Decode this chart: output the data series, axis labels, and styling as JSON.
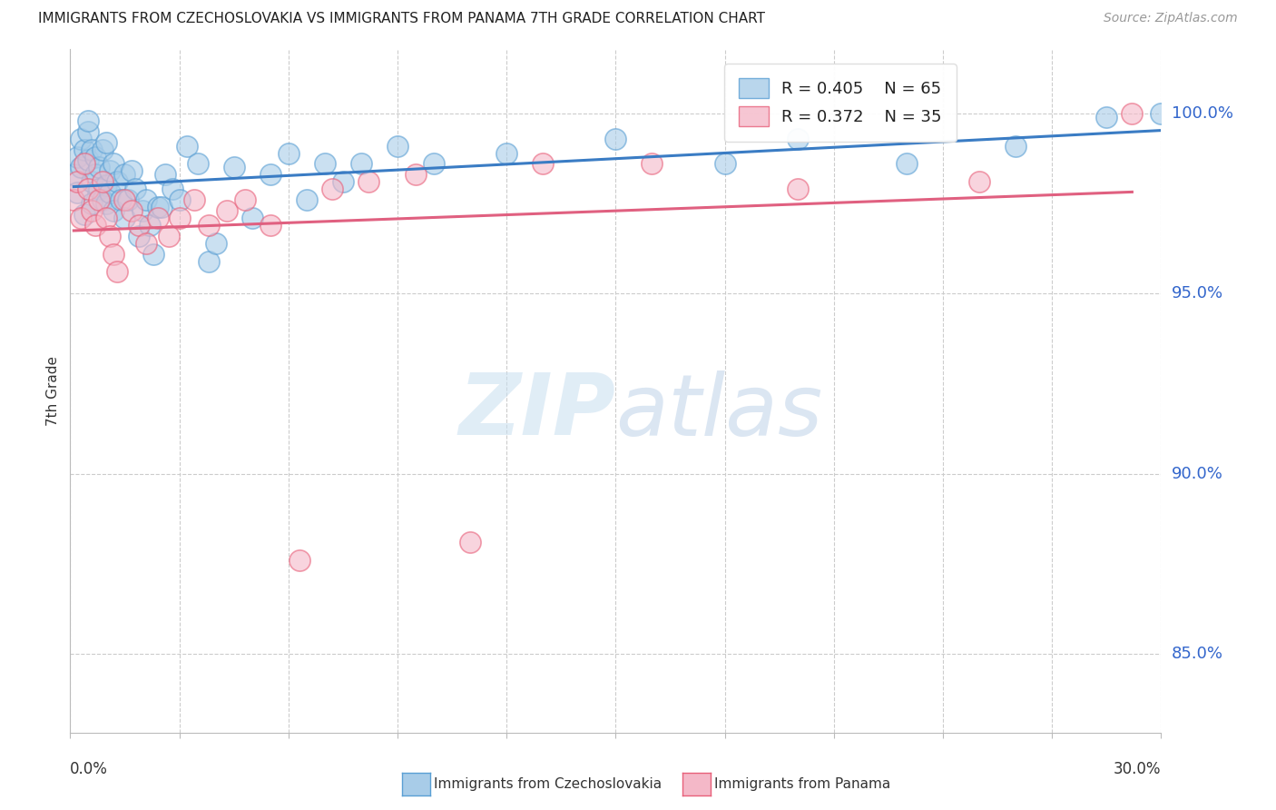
{
  "title": "IMMIGRANTS FROM CZECHOSLOVAKIA VS IMMIGRANTS FROM PANAMA 7TH GRADE CORRELATION CHART",
  "source": "Source: ZipAtlas.com",
  "ylabel": "7th Grade",
  "yaxis_labels": [
    "100.0%",
    "95.0%",
    "90.0%",
    "85.0%"
  ],
  "yaxis_values": [
    1.0,
    0.95,
    0.9,
    0.85
  ],
  "xmin": 0.0,
  "xmax": 0.3,
  "ymin": 0.828,
  "ymax": 1.018,
  "legend_r1": "R = 0.405",
  "legend_n1": "N = 65",
  "legend_r2": "R = 0.372",
  "legend_n2": "N = 35",
  "color_blue": "#a8cce8",
  "color_pink": "#f4b8c8",
  "edge_blue": "#5a9fd4",
  "edge_pink": "#e8607a",
  "line_blue": "#3a7cc4",
  "line_pink": "#e06080",
  "watermark_zip": "ZIP",
  "watermark_atlas": "atlas",
  "blue_scatter_x": [
    0.001,
    0.002,
    0.002,
    0.003,
    0.003,
    0.004,
    0.004,
    0.005,
    0.005,
    0.005,
    0.006,
    0.006,
    0.006,
    0.007,
    0.007,
    0.008,
    0.008,
    0.009,
    0.009,
    0.01,
    0.01,
    0.01,
    0.011,
    0.011,
    0.012,
    0.012,
    0.013,
    0.014,
    0.015,
    0.015,
    0.016,
    0.017,
    0.018,
    0.019,
    0.02,
    0.021,
    0.022,
    0.023,
    0.024,
    0.025,
    0.026,
    0.028,
    0.03,
    0.032,
    0.035,
    0.038,
    0.04,
    0.045,
    0.05,
    0.055,
    0.06,
    0.065,
    0.07,
    0.075,
    0.08,
    0.09,
    0.1,
    0.12,
    0.15,
    0.18,
    0.2,
    0.23,
    0.26,
    0.285,
    0.3
  ],
  "blue_scatter_y": [
    0.983,
    0.978,
    0.988,
    0.985,
    0.993,
    0.99,
    0.972,
    0.987,
    0.995,
    0.998,
    0.981,
    0.975,
    0.99,
    0.988,
    0.983,
    0.979,
    0.985,
    0.99,
    0.976,
    0.98,
    0.975,
    0.992,
    0.984,
    0.978,
    0.986,
    0.973,
    0.981,
    0.976,
    0.983,
    0.971,
    0.976,
    0.984,
    0.979,
    0.966,
    0.973,
    0.976,
    0.969,
    0.961,
    0.974,
    0.974,
    0.983,
    0.979,
    0.976,
    0.991,
    0.986,
    0.959,
    0.964,
    0.985,
    0.971,
    0.983,
    0.989,
    0.976,
    0.986,
    0.981,
    0.986,
    0.991,
    0.986,
    0.989,
    0.993,
    0.986,
    0.993,
    0.986,
    0.991,
    0.999,
    1.0
  ],
  "pink_scatter_x": [
    0.001,
    0.002,
    0.003,
    0.004,
    0.005,
    0.006,
    0.007,
    0.008,
    0.009,
    0.01,
    0.011,
    0.012,
    0.013,
    0.015,
    0.017,
    0.019,
    0.021,
    0.024,
    0.027,
    0.03,
    0.034,
    0.038,
    0.043,
    0.048,
    0.055,
    0.063,
    0.072,
    0.082,
    0.095,
    0.11,
    0.13,
    0.16,
    0.2,
    0.25,
    0.292
  ],
  "pink_scatter_y": [
    0.976,
    0.981,
    0.971,
    0.986,
    0.979,
    0.973,
    0.969,
    0.976,
    0.981,
    0.971,
    0.966,
    0.961,
    0.956,
    0.976,
    0.973,
    0.969,
    0.964,
    0.971,
    0.966,
    0.971,
    0.976,
    0.969,
    0.973,
    0.976,
    0.969,
    0.876,
    0.979,
    0.981,
    0.983,
    0.881,
    0.986,
    0.986,
    0.979,
    0.981,
    1.0
  ]
}
